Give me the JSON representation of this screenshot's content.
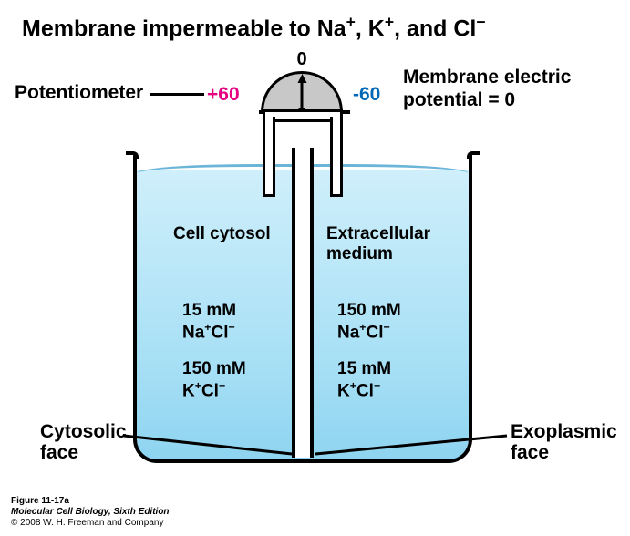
{
  "title_html": "Membrane impermeable to Na<sup>+</sup>, K<sup>+</sup>, and Cl<sup>−</sup>",
  "gauge": {
    "zero": "0",
    "plus": "+60",
    "minus": "-60",
    "plus_color": "#e4007f",
    "minus_color": "#0068b7",
    "fill": "#c8c8c8"
  },
  "labels": {
    "potentiometer": "Potentiometer",
    "mep_line1": "Membrane electric",
    "mep_line2": "potential = 0",
    "cytosol": "Cell cytosol",
    "extracellular_l1": "Extracellular",
    "extracellular_l2": "medium",
    "cyto_face_l1": "Cytosolic",
    "cyto_face_l2": "face",
    "exo_face_l1": "Exoplasmic",
    "exo_face_l2": "face"
  },
  "concentrations": {
    "left_nacl_html": "15 mM<br>Na<sup>+</sup>Cl<sup>−</sup>",
    "left_kcl_html": "150 mM<br>K<sup>+</sup>Cl<sup>−</sup>",
    "right_nacl_html": "150 mM<br>Na<sup>+</sup>Cl<sup>−</sup>",
    "right_kcl_html": "15 mM<br>K<sup>+</sup>Cl<sup>−</sup>"
  },
  "colors": {
    "water_top": "#cfeffb",
    "water_bottom": "#8ed4f0",
    "water_line": "#6ab5d8",
    "stroke": "#000000",
    "background": "#ffffff"
  },
  "footer": {
    "fig": "Figure 11-17a",
    "book": "Molecular Cell Biology, Sixth Edition",
    "copyright": "© 2008 W. H. Freeman and Company"
  }
}
